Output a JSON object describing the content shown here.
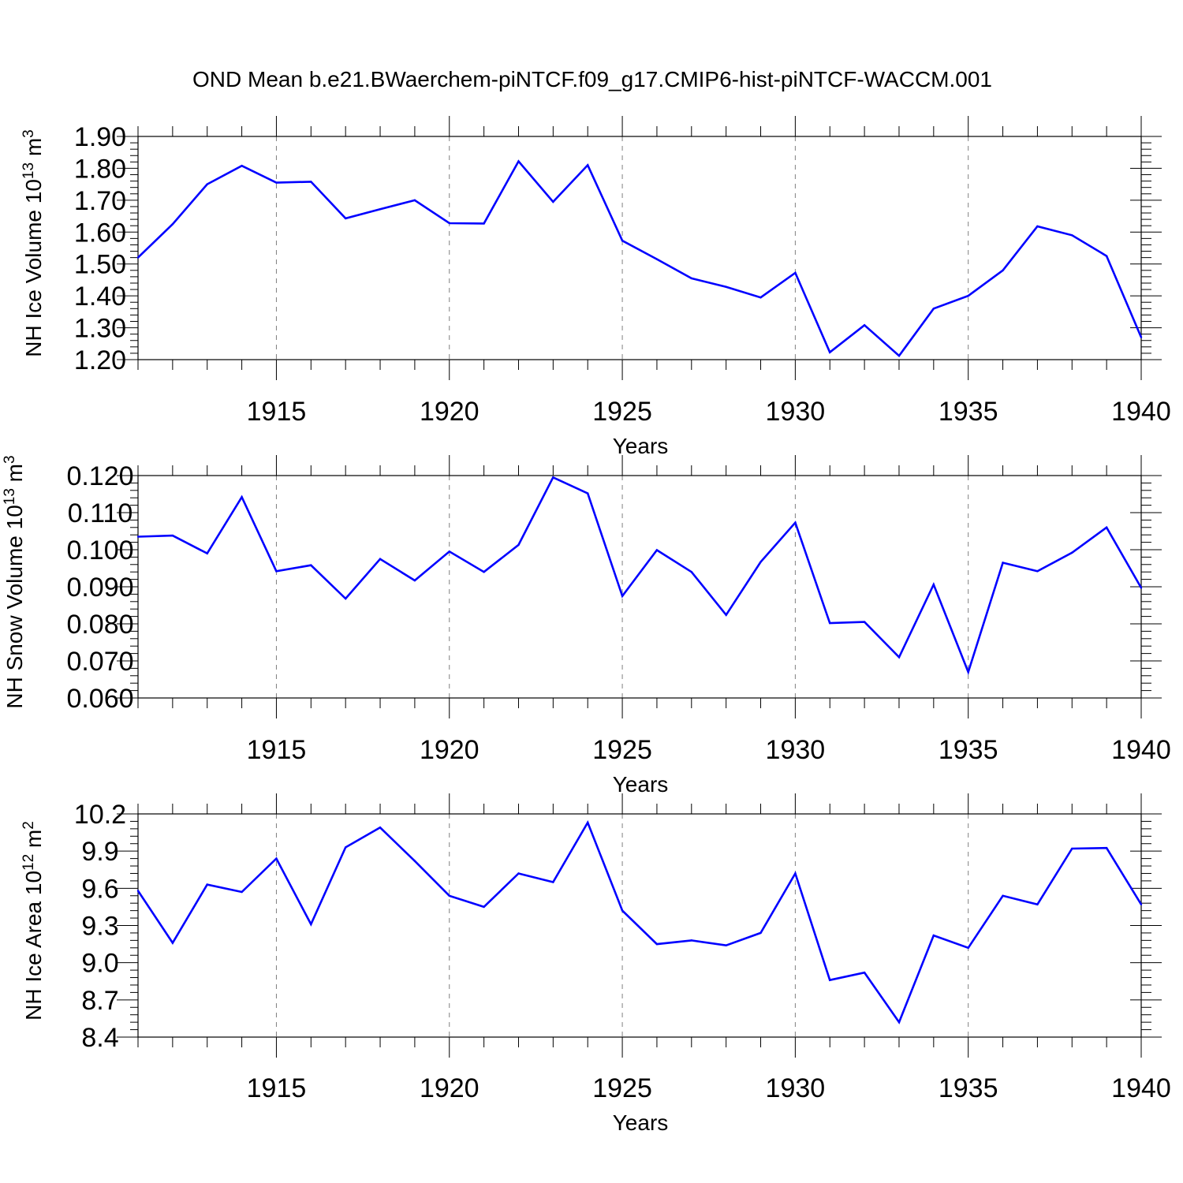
{
  "figure_title": "OND Mean b.e21.BWaerchem-piNTCF.f09_g17.CMIP6-hist-piNTCF-WACCM.001",
  "colors": {
    "line": "#0000ff",
    "axis": "#000000",
    "grid": "#808080",
    "background": "#ffffff"
  },
  "chart_data": [
    {
      "type": "line",
      "title": "",
      "xlabel": "Years",
      "ylabel": "NH Ice Volume 10",
      "ylabel_exponent": "13",
      "ylabel_unit": "m",
      "ylabel_unit_exponent": "3",
      "xlim": [
        1911,
        1940
      ],
      "ylim": [
        1.2,
        1.9
      ],
      "xticks": [
        1915,
        1920,
        1925,
        1930,
        1935,
        1940
      ],
      "yticks": [
        1.2,
        1.3,
        1.4,
        1.5,
        1.6,
        1.7,
        1.8,
        1.9
      ],
      "ytick_labels": [
        "1.20",
        "1.30",
        "1.40",
        "1.50",
        "1.60",
        "1.70",
        "1.80",
        "1.90"
      ],
      "grid": "vertical dashed at major x ticks",
      "series": [
        {
          "name": "NH Ice Volume",
          "x": [
            1911,
            1912,
            1913,
            1914,
            1915,
            1916,
            1917,
            1918,
            1919,
            1920,
            1921,
            1922,
            1923,
            1924,
            1925,
            1926,
            1927,
            1928,
            1929,
            1930,
            1931,
            1932,
            1933,
            1934,
            1935,
            1936,
            1937,
            1938,
            1939,
            1940
          ],
          "values": [
            1.52,
            1.625,
            1.75,
            1.808,
            1.755,
            1.758,
            1.643,
            1.672,
            1.7,
            1.628,
            1.627,
            1.822,
            1.695,
            1.81,
            1.573,
            1.515,
            1.455,
            1.428,
            1.395,
            1.472,
            1.223,
            1.308,
            1.212,
            1.36,
            1.4,
            1.48,
            1.618,
            1.59,
            1.525,
            1.27
          ]
        }
      ]
    },
    {
      "type": "line",
      "title": "",
      "xlabel": "Years",
      "ylabel": "NH Snow Volume 10",
      "ylabel_exponent": "13",
      "ylabel_unit": "m",
      "ylabel_unit_exponent": "3",
      "xlim": [
        1911,
        1940
      ],
      "ylim": [
        0.06,
        0.12
      ],
      "xticks": [
        1915,
        1920,
        1925,
        1930,
        1935,
        1940
      ],
      "yticks": [
        0.06,
        0.07,
        0.08,
        0.09,
        0.1,
        0.11,
        0.12
      ],
      "ytick_labels": [
        "0.060",
        "0.070",
        "0.080",
        "0.090",
        "0.100",
        "0.110",
        "0.120"
      ],
      "grid": "vertical dashed at major x ticks",
      "series": [
        {
          "name": "NH Snow Volume",
          "x": [
            1911,
            1912,
            1913,
            1914,
            1915,
            1916,
            1917,
            1918,
            1919,
            1920,
            1921,
            1922,
            1923,
            1924,
            1925,
            1926,
            1927,
            1928,
            1929,
            1930,
            1931,
            1932,
            1933,
            1934,
            1935,
            1936,
            1937,
            1938,
            1939,
            1940
          ],
          "values": [
            0.1035,
            0.1038,
            0.099,
            0.1142,
            0.0942,
            0.0958,
            0.0868,
            0.0975,
            0.0917,
            0.0995,
            0.094,
            0.1013,
            0.1195,
            0.1152,
            0.0875,
            0.0999,
            0.094,
            0.0824,
            0.0967,
            0.1073,
            0.0802,
            0.0805,
            0.071,
            0.0906,
            0.067,
            0.0965,
            0.0942,
            0.0992,
            0.106,
            0.0897
          ]
        }
      ]
    },
    {
      "type": "line",
      "title": "",
      "xlabel": "Years",
      "ylabel": "NH Ice Area 10",
      "ylabel_exponent": "12",
      "ylabel_unit": "m",
      "ylabel_unit_exponent": "2",
      "xlim": [
        1911,
        1940
      ],
      "ylim": [
        8.4,
        10.2
      ],
      "xticks": [
        1915,
        1920,
        1925,
        1930,
        1935,
        1940
      ],
      "yticks": [
        8.4,
        8.7,
        9.0,
        9.3,
        9.6,
        9.9,
        10.2
      ],
      "ytick_labels": [
        "8.4",
        "8.7",
        "9.0",
        "9.3",
        "9.6",
        "9.9",
        "10.2"
      ],
      "grid": "vertical dashed at major x ticks",
      "series": [
        {
          "name": "NH Ice Area",
          "x": [
            1911,
            1912,
            1913,
            1914,
            1915,
            1916,
            1917,
            1918,
            1919,
            1920,
            1921,
            1922,
            1923,
            1924,
            1925,
            1926,
            1927,
            1928,
            1929,
            1930,
            1931,
            1932,
            1933,
            1934,
            1935,
            1936,
            1937,
            1938,
            1939,
            1940
          ],
          "values": [
            9.58,
            9.16,
            9.63,
            9.57,
            9.84,
            9.31,
            9.93,
            10.09,
            9.82,
            9.54,
            9.45,
            9.72,
            9.65,
            10.13,
            9.42,
            9.15,
            9.18,
            9.14,
            9.24,
            9.72,
            8.86,
            8.92,
            8.52,
            9.22,
            9.12,
            9.54,
            9.47,
            9.92,
            9.925,
            9.47
          ]
        }
      ]
    }
  ]
}
